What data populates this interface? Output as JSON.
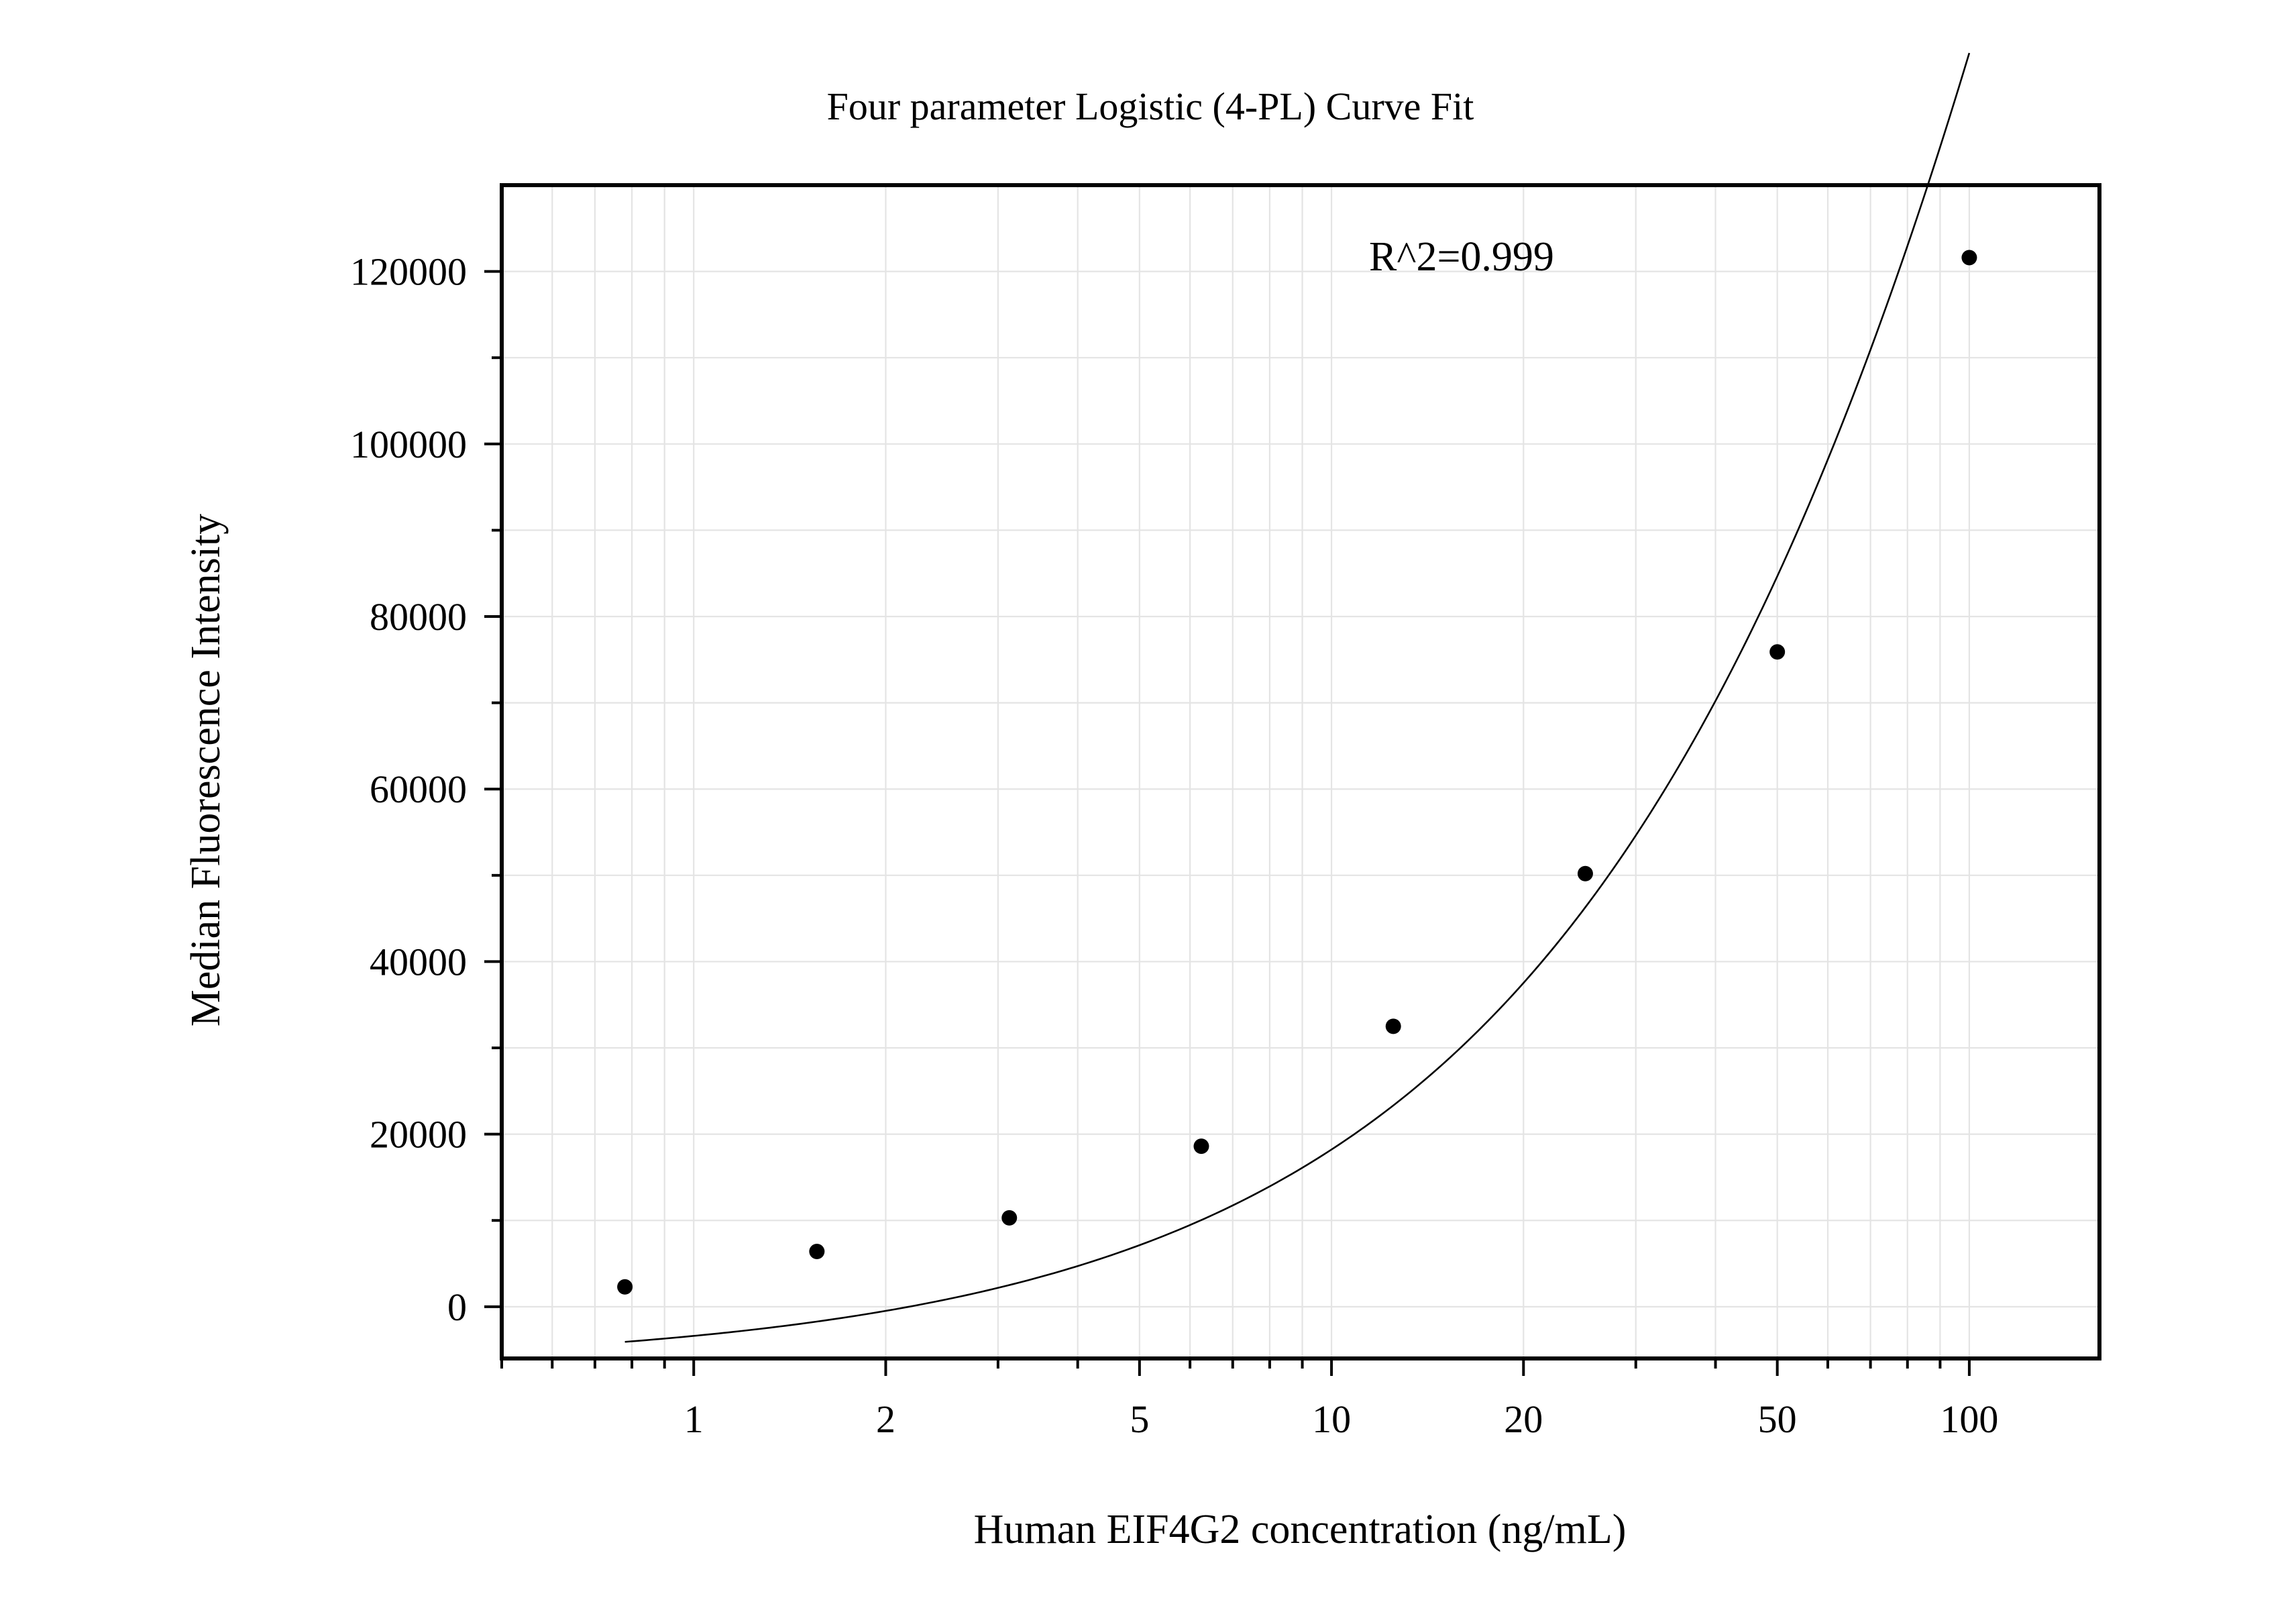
{
  "chart_data": {
    "type": "scatter",
    "title": "Four parameter Logistic (4-PL) Curve Fit",
    "xlabel": "Human EIF4G2 concentration (ng/mL)",
    "ylabel": "Median Fluorescence Intensity",
    "x_scale": "log",
    "xlim": [
      0.5,
      160
    ],
    "ylim": [
      -6000,
      130000
    ],
    "x_ticks": [
      {
        "value": 1,
        "label": "1"
      },
      {
        "value": 2,
        "label": "2"
      },
      {
        "value": 5,
        "label": "5"
      },
      {
        "value": 10,
        "label": "10"
      },
      {
        "value": 20,
        "label": "20"
      },
      {
        "value": 50,
        "label": "50"
      },
      {
        "value": 100,
        "label": "100"
      }
    ],
    "y_ticks": [
      {
        "value": 0,
        "label": "0"
      },
      {
        "value": 20000,
        "label": "20000"
      },
      {
        "value": 40000,
        "label": "40000"
      },
      {
        "value": 60000,
        "label": "60000"
      },
      {
        "value": 80000,
        "label": "80000"
      },
      {
        "value": 100000,
        "label": "100000"
      },
      {
        "value": 120000,
        "label": "120000"
      }
    ],
    "grid": true,
    "annotation": "R^2=0.999",
    "points": [
      {
        "x": 0.78,
        "y": 2300
      },
      {
        "x": 1.56,
        "y": 6400
      },
      {
        "x": 3.125,
        "y": 10300
      },
      {
        "x": 6.25,
        "y": 18600
      },
      {
        "x": 12.5,
        "y": 32500
      },
      {
        "x": 25,
        "y": 50200
      },
      {
        "x": 50,
        "y": 75900
      },
      {
        "x": 100,
        "y": 121600
      }
    ],
    "fit_curve": {
      "model": "4PL",
      "A": -7000,
      "B": 0.855,
      "C": 580,
      "D": 830000
    },
    "colors": {
      "points": "#000000",
      "curve": "#000000",
      "grid": "#e4e4e4",
      "frame": "#000000"
    }
  }
}
